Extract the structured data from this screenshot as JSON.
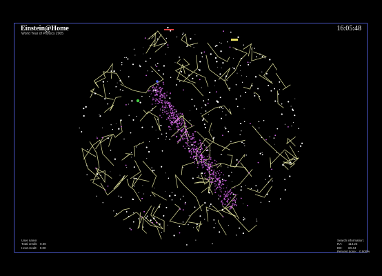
{
  "app": {
    "title": "Einstein@Home",
    "subtitle": "World Year of Physics 2005",
    "clock": "16:05:48"
  },
  "user_info": [
    {
      "label": "User name:",
      "value": ""
    },
    {
      "label": "Total credit:",
      "value": "0.00"
    },
    {
      "label": "Host credit:",
      "value": "0.00"
    }
  ],
  "search_info": {
    "heading": "Search information:",
    "rows": [
      {
        "label": "RA:",
        "value": "113.23"
      },
      {
        "label": "DE:",
        "value": "60.44"
      },
      {
        "label": "Percent done:",
        "value": "0.500%"
      }
    ]
  },
  "colors": {
    "frame": "#4a57c8",
    "constellation_lines": "#e4e6a0",
    "stars": "#ffffff",
    "milky_way": "#d264e6"
  }
}
